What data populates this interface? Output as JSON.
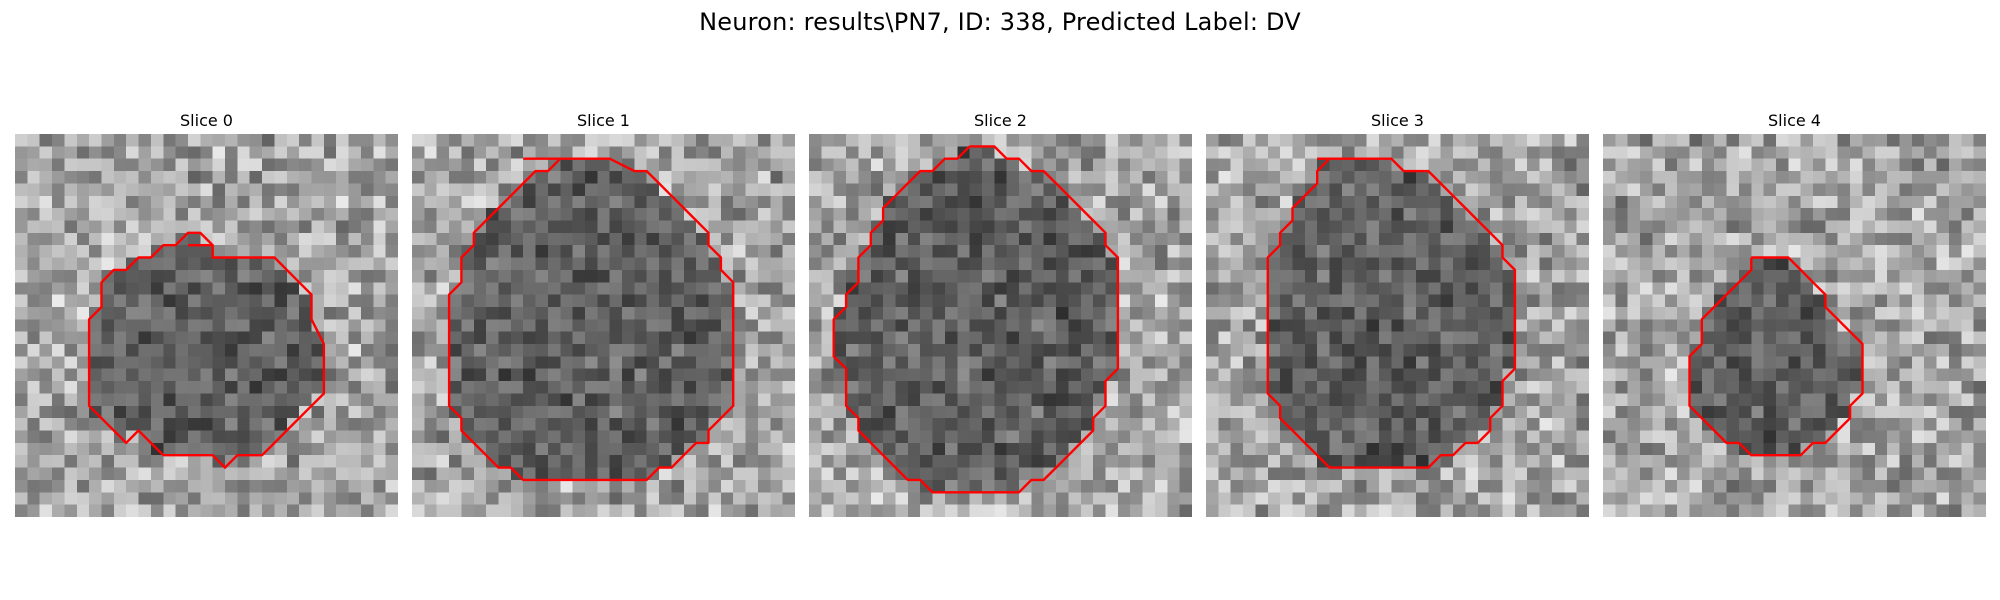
{
  "figure": {
    "title": "Neuron: results\\PN7, ID: 338, Predicted Label: DV"
  },
  "contour_color": "#ff0000",
  "colormap": "gray",
  "panels": [
    {
      "title": "Slice 0",
      "contour": [
        [
          14,
          9
        ],
        [
          16,
          9
        ],
        [
          16,
          10
        ],
        [
          19,
          10
        ],
        [
          21,
          10
        ],
        [
          22,
          11
        ],
        [
          23,
          12
        ],
        [
          24,
          13
        ],
        [
          24,
          15
        ],
        [
          25,
          17
        ],
        [
          25,
          19
        ],
        [
          25,
          21
        ],
        [
          24,
          22
        ],
        [
          22,
          24
        ],
        [
          21,
          25
        ],
        [
          20,
          26
        ],
        [
          18,
          26
        ],
        [
          17,
          27
        ],
        [
          16,
          26
        ],
        [
          14,
          26
        ],
        [
          12,
          26
        ],
        [
          11,
          25
        ],
        [
          10,
          24
        ],
        [
          9,
          25
        ],
        [
          8,
          24
        ],
        [
          7,
          23
        ],
        [
          6,
          22
        ],
        [
          6,
          19
        ],
        [
          6,
          16
        ],
        [
          6,
          15
        ],
        [
          7,
          14
        ],
        [
          7,
          12
        ],
        [
          8,
          11
        ],
        [
          9,
          11
        ],
        [
          10,
          10
        ],
        [
          11,
          10
        ],
        [
          12,
          9
        ],
        [
          13,
          9
        ],
        [
          14,
          8
        ],
        [
          15,
          8
        ],
        [
          16,
          9
        ]
      ]
    },
    {
      "title": "Slice 1",
      "contour": [
        [
          9,
          2
        ],
        [
          11,
          2
        ],
        [
          13,
          2
        ],
        [
          15,
          2
        ],
        [
          16,
          2
        ],
        [
          18,
          3
        ],
        [
          19,
          3
        ],
        [
          20,
          4
        ],
        [
          21,
          5
        ],
        [
          22,
          6
        ],
        [
          23,
          7
        ],
        [
          24,
          8
        ],
        [
          24,
          9
        ],
        [
          25,
          10
        ],
        [
          25,
          11
        ],
        [
          26,
          12
        ],
        [
          26,
          13
        ],
        [
          26,
          15
        ],
        [
          26,
          17
        ],
        [
          26,
          19
        ],
        [
          26,
          21
        ],
        [
          26,
          22
        ],
        [
          25,
          23
        ],
        [
          24,
          24
        ],
        [
          24,
          25
        ],
        [
          23,
          25
        ],
        [
          22,
          26
        ],
        [
          21,
          27
        ],
        [
          20,
          27
        ],
        [
          19,
          28
        ],
        [
          17,
          28
        ],
        [
          15,
          28
        ],
        [
          13,
          28
        ],
        [
          11,
          28
        ],
        [
          9,
          28
        ],
        [
          8,
          27
        ],
        [
          7,
          27
        ],
        [
          6,
          26
        ],
        [
          5,
          25
        ],
        [
          4,
          24
        ],
        [
          4,
          23
        ],
        [
          3,
          22
        ],
        [
          3,
          20
        ],
        [
          3,
          18
        ],
        [
          3,
          16
        ],
        [
          3,
          14
        ],
        [
          3,
          13
        ],
        [
          4,
          12
        ],
        [
          4,
          10
        ],
        [
          5,
          9
        ],
        [
          5,
          8
        ],
        [
          6,
          7
        ],
        [
          7,
          6
        ],
        [
          8,
          5
        ],
        [
          9,
          4
        ],
        [
          10,
          3
        ],
        [
          11,
          3
        ],
        [
          12,
          2
        ]
      ]
    },
    {
      "title": "Slice 2",
      "contour": [
        [
          13,
          1
        ],
        [
          15,
          1
        ],
        [
          16,
          2
        ],
        [
          17,
          2
        ],
        [
          18,
          3
        ],
        [
          19,
          3
        ],
        [
          20,
          4
        ],
        [
          21,
          5
        ],
        [
          22,
          6
        ],
        [
          23,
          7
        ],
        [
          24,
          8
        ],
        [
          24,
          9
        ],
        [
          25,
          10
        ],
        [
          25,
          11
        ],
        [
          25,
          13
        ],
        [
          25,
          15
        ],
        [
          25,
          17
        ],
        [
          25,
          19
        ],
        [
          24,
          20
        ],
        [
          24,
          22
        ],
        [
          23,
          23
        ],
        [
          23,
          24
        ],
        [
          22,
          25
        ],
        [
          21,
          26
        ],
        [
          20,
          27
        ],
        [
          19,
          28
        ],
        [
          18,
          28
        ],
        [
          17,
          29
        ],
        [
          15,
          29
        ],
        [
          13,
          29
        ],
        [
          11,
          29
        ],
        [
          10,
          29
        ],
        [
          9,
          28
        ],
        [
          8,
          28
        ],
        [
          7,
          27
        ],
        [
          6,
          26
        ],
        [
          5,
          25
        ],
        [
          4,
          24
        ],
        [
          4,
          23
        ],
        [
          3,
          22
        ],
        [
          3,
          20
        ],
        [
          3,
          19
        ],
        [
          2,
          18
        ],
        [
          2,
          16
        ],
        [
          2,
          15
        ],
        [
          3,
          14
        ],
        [
          3,
          13
        ],
        [
          4,
          12
        ],
        [
          4,
          10
        ],
        [
          5,
          9
        ],
        [
          5,
          8
        ],
        [
          6,
          7
        ],
        [
          6,
          6
        ],
        [
          7,
          5
        ],
        [
          8,
          4
        ],
        [
          9,
          3
        ],
        [
          10,
          3
        ],
        [
          11,
          2
        ],
        [
          12,
          2
        ],
        [
          13,
          1
        ]
      ]
    },
    {
      "title": "Slice 3",
      "contour": [
        [
          9,
          2
        ],
        [
          11,
          2
        ],
        [
          13,
          2
        ],
        [
          15,
          2
        ],
        [
          16,
          3
        ],
        [
          18,
          3
        ],
        [
          19,
          4
        ],
        [
          20,
          5
        ],
        [
          21,
          6
        ],
        [
          22,
          7
        ],
        [
          23,
          8
        ],
        [
          24,
          9
        ],
        [
          24,
          10
        ],
        [
          25,
          11
        ],
        [
          25,
          13
        ],
        [
          25,
          15
        ],
        [
          25,
          17
        ],
        [
          25,
          19
        ],
        [
          24,
          20
        ],
        [
          24,
          22
        ],
        [
          23,
          23
        ],
        [
          23,
          24
        ],
        [
          22,
          25
        ],
        [
          21,
          25
        ],
        [
          20,
          26
        ],
        [
          19,
          26
        ],
        [
          18,
          27
        ],
        [
          16,
          27
        ],
        [
          14,
          27
        ],
        [
          12,
          27
        ],
        [
          10,
          27
        ],
        [
          9,
          26
        ],
        [
          8,
          25
        ],
        [
          7,
          24
        ],
        [
          6,
          23
        ],
        [
          6,
          22
        ],
        [
          5,
          21
        ],
        [
          5,
          19
        ],
        [
          5,
          17
        ],
        [
          5,
          15
        ],
        [
          5,
          13
        ],
        [
          5,
          11
        ],
        [
          5,
          10
        ],
        [
          6,
          9
        ],
        [
          6,
          8
        ],
        [
          7,
          7
        ],
        [
          7,
          6
        ],
        [
          8,
          5
        ],
        [
          9,
          4
        ],
        [
          9,
          3
        ],
        [
          10,
          2
        ]
      ]
    },
    {
      "title": "Slice 4",
      "contour": [
        [
          12,
          10
        ],
        [
          14,
          10
        ],
        [
          15,
          10
        ],
        [
          16,
          11
        ],
        [
          17,
          12
        ],
        [
          18,
          13
        ],
        [
          18,
          14
        ],
        [
          19,
          15
        ],
        [
          20,
          16
        ],
        [
          21,
          17
        ],
        [
          21,
          19
        ],
        [
          21,
          21
        ],
        [
          20,
          22
        ],
        [
          20,
          23
        ],
        [
          19,
          24
        ],
        [
          18,
          25
        ],
        [
          17,
          25
        ],
        [
          16,
          26
        ],
        [
          14,
          26
        ],
        [
          12,
          26
        ],
        [
          11,
          25
        ],
        [
          10,
          25
        ],
        [
          9,
          24
        ],
        [
          8,
          23
        ],
        [
          7,
          22
        ],
        [
          7,
          21
        ],
        [
          7,
          19
        ],
        [
          7,
          18
        ],
        [
          8,
          17
        ],
        [
          8,
          15
        ],
        [
          9,
          14
        ],
        [
          10,
          13
        ],
        [
          11,
          12
        ],
        [
          12,
          11
        ]
      ]
    }
  ]
}
